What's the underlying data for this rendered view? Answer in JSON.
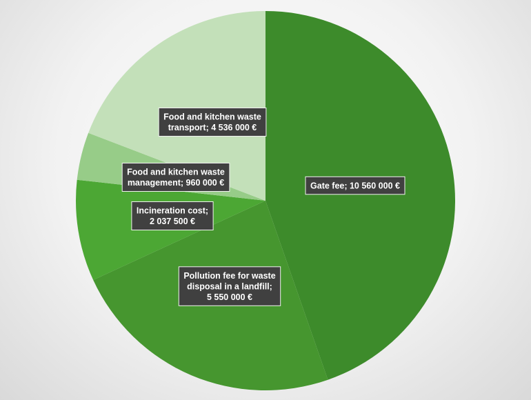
{
  "chart_data": {
    "type": "pie",
    "title": "",
    "unit": "€",
    "slices": [
      {
        "label": "Gate fee; 10 560 000 €",
        "name": "Gate fee",
        "value": 10560000,
        "color": "#3d8b2b"
      },
      {
        "label": "Pollution fee for waste disposal in a landfill; 5 550 000 €",
        "name": "Pollution fee for waste disposal in a landfill",
        "value": 5550000,
        "color": "#46962f"
      },
      {
        "label": "Incineration cost; 2 037 500 €",
        "name": "Incineration cost",
        "value": 2037500,
        "color": "#4ca734"
      },
      {
        "label": "Food and kitchen waste management; 960 000 €",
        "name": "Food and kitchen waste management",
        "value": 960000,
        "color": "#97cc88"
      },
      {
        "label": "Food and kitchen waste transport; 4 536 000 €",
        "name": "Food and kitchen waste transport",
        "value": 4536000,
        "color": "#c3e0b9"
      }
    ],
    "label_lines": [
      [
        "Gate fee; 10 560 000 €"
      ],
      [
        "Pollution fee for waste",
        "disposal in a landfill;",
        "5 550 000 €"
      ],
      [
        "Incineration cost;",
        "2 037 500 €"
      ],
      [
        "Food and kitchen waste",
        "management; 960 000 €"
      ],
      [
        "Food and kitchen waste",
        "transport; 4 536 000 €"
      ]
    ],
    "start_angle": "12 o'clock",
    "direction": "clockwise",
    "legend": "none",
    "data_labels": "dark boxes with white bold text"
  }
}
